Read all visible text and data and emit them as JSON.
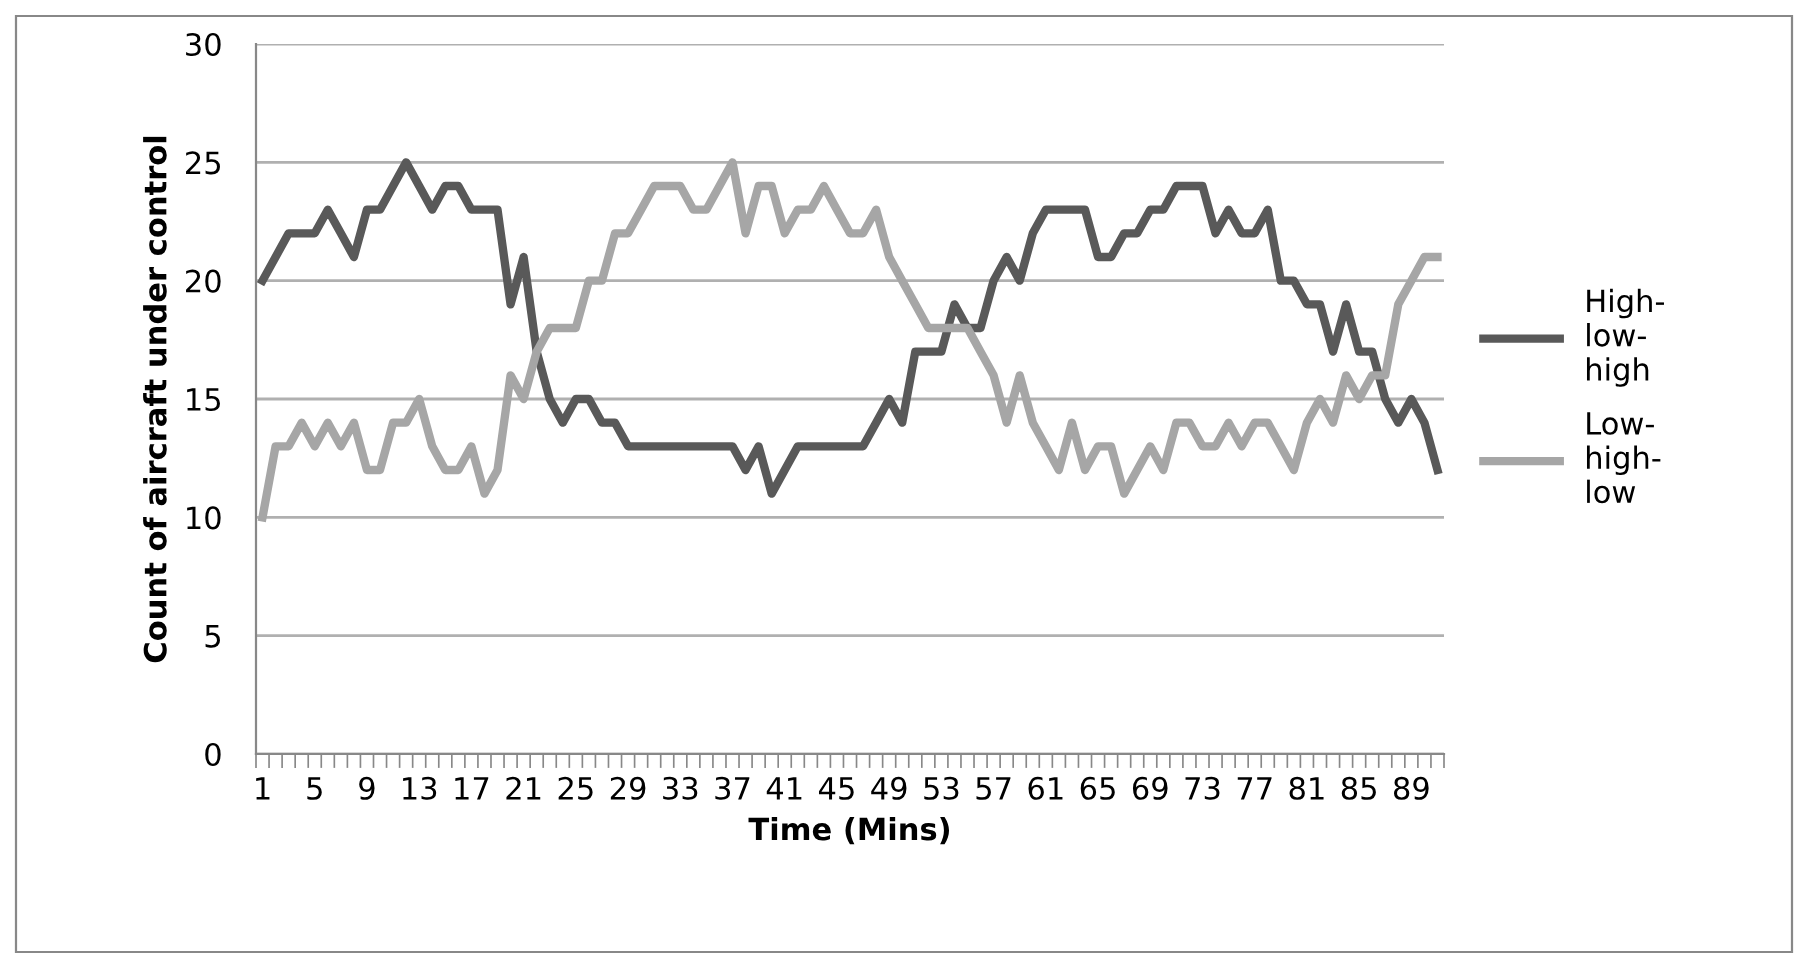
{
  "chart_data": {
    "type": "line",
    "xlabel": "Time (Mins)",
    "ylabel": "Count of aircraft under control",
    "categories": [
      "1",
      null,
      null,
      null,
      "5",
      null,
      null,
      null,
      "9",
      null,
      null,
      null,
      "13",
      null,
      null,
      null,
      "17",
      null,
      null,
      null,
      "21",
      null,
      null,
      null,
      "25",
      null,
      null,
      null,
      "29",
      null,
      null,
      null,
      "33",
      null,
      null,
      null,
      "37",
      null,
      null,
      null,
      "41",
      null,
      null,
      null,
      "45",
      null,
      null,
      null,
      "49",
      null,
      null,
      null,
      "53",
      null,
      null,
      null,
      "57",
      null,
      null,
      null,
      "61",
      null,
      null,
      null,
      "65",
      null,
      null,
      null,
      "69",
      null,
      null,
      null,
      "73",
      null,
      null,
      null,
      "77",
      null,
      null,
      null,
      "81",
      null,
      null,
      null,
      "85",
      null,
      null,
      null,
      "89",
      null,
      null
    ],
    "series": [
      {
        "name": "High-low-high",
        "color": "#595959",
        "values": [
          20,
          21,
          22,
          22,
          22,
          23,
          22,
          21,
          23,
          23,
          24,
          25,
          24,
          23,
          24,
          24,
          23,
          23,
          23,
          19,
          21,
          17,
          15,
          14,
          15,
          15,
          14,
          14,
          13,
          13,
          13,
          13,
          13,
          13,
          13,
          13,
          13,
          12,
          13,
          11,
          12,
          13,
          13,
          13,
          13,
          13,
          13,
          14,
          15,
          14,
          17,
          17,
          17,
          19,
          18,
          18,
          20,
          21,
          20,
          22,
          23,
          23,
          23,
          23,
          21,
          21,
          22,
          22,
          23,
          23,
          24,
          24,
          24,
          22,
          23,
          22,
          22,
          23,
          20,
          20,
          19,
          19,
          17,
          19,
          17,
          17,
          15,
          14,
          15,
          14,
          12
        ]
      },
      {
        "name": "Low-high-low",
        "color": "#a6a6a6",
        "values": [
          10,
          13,
          13,
          14,
          13,
          14,
          13,
          14,
          12,
          12,
          14,
          14,
          15,
          13,
          12,
          12,
          13,
          11,
          12,
          16,
          15,
          17,
          18,
          18,
          18,
          20,
          20,
          22,
          22,
          23,
          24,
          24,
          24,
          23,
          23,
          24,
          25,
          22,
          24,
          24,
          22,
          23,
          23,
          24,
          23,
          22,
          22,
          23,
          21,
          20,
          19,
          18,
          18,
          18,
          18,
          17,
          16,
          14,
          16,
          14,
          13,
          12,
          14,
          12,
          13,
          13,
          11,
          12,
          13,
          12,
          14,
          14,
          13,
          13,
          14,
          13,
          14,
          14,
          13,
          12,
          14,
          15,
          14,
          16,
          15,
          16,
          16,
          19,
          20,
          21,
          21
        ]
      }
    ],
    "ylim": [
      0,
      30
    ],
    "yticks": [
      0,
      5,
      10,
      15,
      20,
      25,
      30
    ],
    "grid": "y",
    "legend": "right",
    "marker": "none",
    "line_style": "solid"
  }
}
